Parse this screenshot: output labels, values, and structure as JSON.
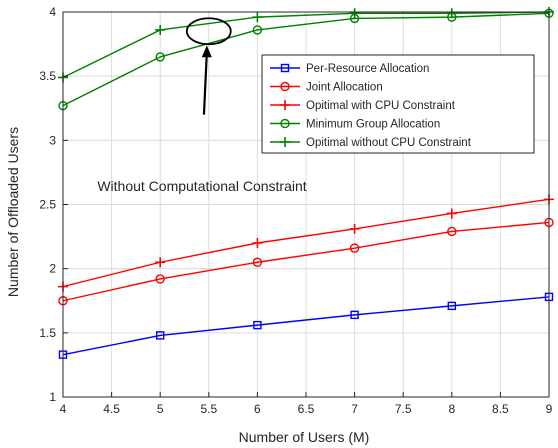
{
  "chart_data": {
    "type": "line",
    "title": "",
    "xlabel": "Number of Users (M)",
    "ylabel": "Number of Offloaded Users",
    "xlim": [
      4,
      9
    ],
    "ylim": [
      1,
      4
    ],
    "x_ticks": [
      "4",
      "4.5",
      "5",
      "5.5",
      "6",
      "6.5",
      "7",
      "7.5",
      "8",
      "8.5",
      "9"
    ],
    "y_ticks": [
      "1",
      "1.5",
      "2",
      "2.5",
      "3",
      "3.5",
      "4"
    ],
    "grid": true,
    "legend_position": "upper-right",
    "x": [
      4,
      5,
      6,
      7,
      8,
      9
    ],
    "series": [
      {
        "name": "Per-Resource Allocation",
        "color": "#0000ff",
        "marker": "square",
        "values": [
          1.33,
          1.48,
          1.56,
          1.64,
          1.71,
          1.78
        ]
      },
      {
        "name": "Joint Allocation",
        "color": "#ff0000",
        "marker": "circle",
        "values": [
          1.75,
          1.92,
          2.05,
          2.16,
          2.29,
          2.36
        ]
      },
      {
        "name": "Opitimal with CPU Constraint",
        "color": "#ff0000",
        "marker": "plus",
        "values": [
          1.86,
          2.05,
          2.2,
          2.31,
          2.43,
          2.54
        ]
      },
      {
        "name": "Minimum Group Allocation",
        "color": "#008000",
        "marker": "circle",
        "values": [
          3.27,
          3.65,
          3.86,
          3.95,
          3.96,
          3.99
        ]
      },
      {
        "name": "Opitimal without CPU Constraint",
        "color": "#008000",
        "marker": "plus",
        "values": [
          3.49,
          3.86,
          3.96,
          3.99,
          3.99,
          4.0
        ]
      }
    ],
    "annotation": {
      "text": "Without Computational Constraint",
      "ellipse_center": [
        5.5,
        3.85
      ],
      "arrow_tail": [
        5.45,
        3.2
      ]
    }
  }
}
